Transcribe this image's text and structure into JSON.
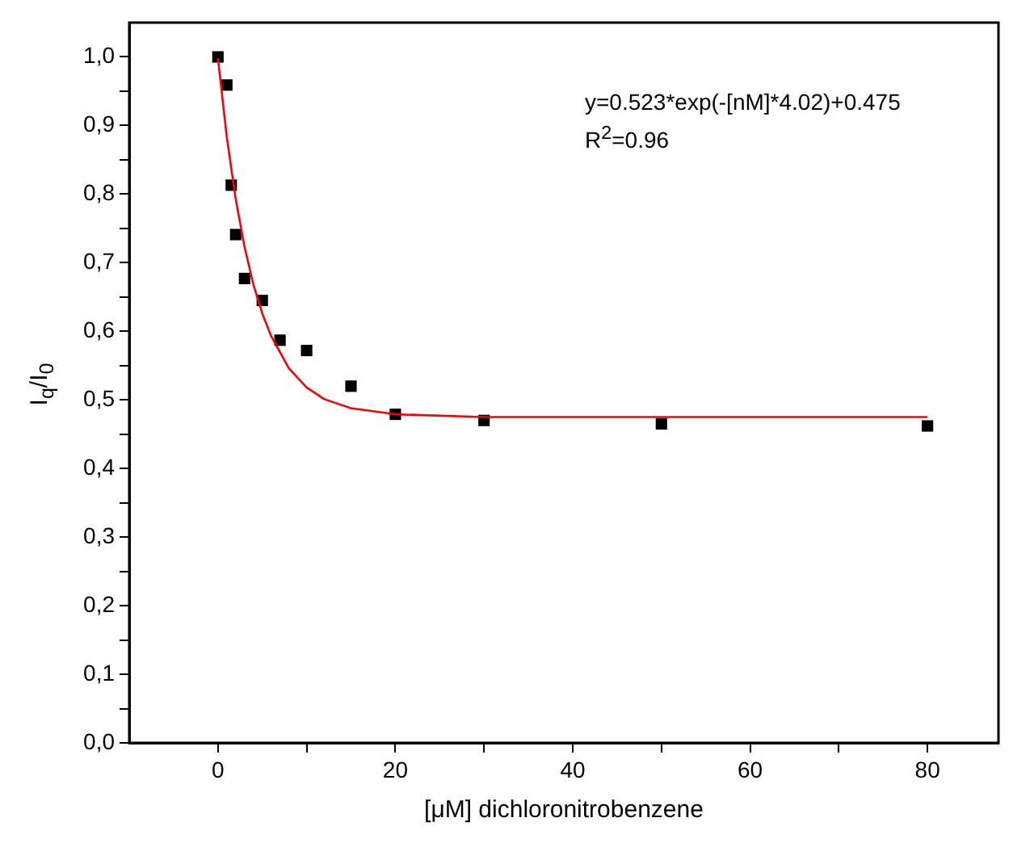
{
  "chart_data": {
    "type": "scatter",
    "xlabel": "[μM] dichloronitrobenzene",
    "ylabel": "I$_{q}$/I$_{0}$",
    "annotations": [
      "y=0.523*exp(-[nM]*4.02)+0.475",
      "R$^{2}$=0.96"
    ],
    "xlim": [
      -10,
      88
    ],
    "ylim": [
      0,
      1.05
    ],
    "xticks": [
      0,
      {
        "value": 10,
        "label": null
      },
      20,
      {
        "value": 30,
        "label": null
      },
      40,
      {
        "value": 50,
        "label": null
      },
      60,
      {
        "value": 70,
        "label": null
      },
      80
    ],
    "yticks": [
      {
        "value": 0,
        "label": "0,0"
      },
      {
        "value": 0.05,
        "label": null
      },
      {
        "value": 0.1,
        "label": "0,1"
      },
      {
        "value": 0.15,
        "label": null
      },
      {
        "value": 0.2,
        "label": "0,2"
      },
      {
        "value": 0.25,
        "label": null
      },
      {
        "value": 0.3,
        "label": "0,3"
      },
      {
        "value": 0.35,
        "label": null
      },
      {
        "value": 0.4,
        "label": "0,4"
      },
      {
        "value": 0.45,
        "label": null
      },
      {
        "value": 0.5,
        "label": "0,5"
      },
      {
        "value": 0.55,
        "label": null
      },
      {
        "value": 0.6,
        "label": "0,6"
      },
      {
        "value": 0.65,
        "label": null
      },
      {
        "value": 0.7,
        "label": "0,7"
      },
      {
        "value": 0.75,
        "label": null
      },
      {
        "value": 0.8,
        "label": "0,8"
      },
      {
        "value": 0.85,
        "label": null
      },
      {
        "value": 0.9,
        "label": "0,9"
      },
      {
        "value": 0.95,
        "label": null
      },
      {
        "value": 1.0,
        "label": "1,0"
      }
    ],
    "grid": false,
    "legend": false,
    "marker": "square",
    "series": [
      {
        "type": "line",
        "color": "#ff0000",
        "marker": "none",
        "x": [
          0,
          1,
          2,
          3,
          4,
          5,
          6,
          8,
          10,
          12,
          15,
          20,
          30,
          50,
          80
        ],
        "values": [
          0.998,
          0.883,
          0.793,
          0.723,
          0.668,
          0.626,
          0.593,
          0.546,
          0.518,
          0.501,
          0.488,
          0.479,
          0.475,
          0.475,
          0.475
        ]
      },
      {
        "color": "#000000",
        "x": [
          0,
          1,
          1.5,
          2,
          3,
          5,
          7,
          10,
          15,
          20,
          30,
          50,
          80
        ],
        "values": [
          1.0,
          0.959,
          0.813,
          0.741,
          0.677,
          0.645,
          0.587,
          0.572,
          0.52,
          0.479,
          0.47,
          0.465,
          0.462
        ]
      }
    ]
  }
}
